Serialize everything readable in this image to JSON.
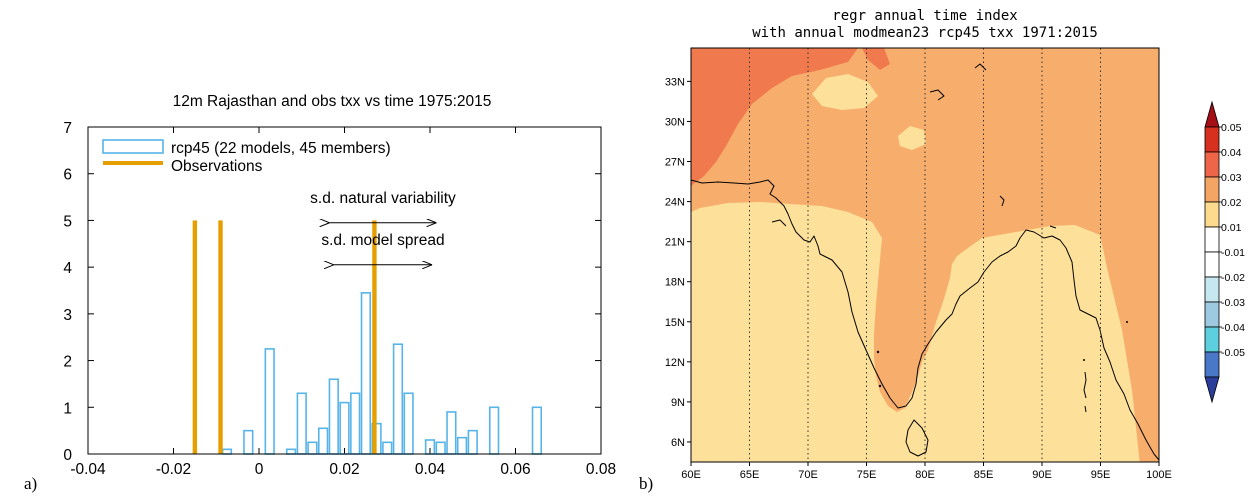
{
  "panel_a": {
    "label": "a)",
    "chart_data": {
      "type": "bar",
      "title": "12m Rajasthan  and obs txx vs time 1975:2015",
      "xlabel": "",
      "ylabel": "",
      "xlim": [
        -0.04,
        0.08
      ],
      "ylim": [
        0,
        7
      ],
      "xticks": [
        "-0.04",
        "-0.02",
        "0",
        "0.02",
        "0.04",
        "0.06",
        "0.08"
      ],
      "yticks": [
        "0",
        "1",
        "2",
        "3",
        "4",
        "5",
        "6",
        "7"
      ],
      "bin_width": 0.0025,
      "legend_position": "top-left",
      "series": [
        {
          "name": "rcp45 (22 models, 45 members)",
          "color": "#56b4e9",
          "style": "outlined-bars",
          "x": [
            -0.0075,
            -0.0025,
            0.0025,
            0.0075,
            0.01,
            0.0125,
            0.015,
            0.0175,
            0.02,
            0.0225,
            0.025,
            0.0275,
            0.03,
            0.0325,
            0.035,
            0.04,
            0.0425,
            0.045,
            0.0475,
            0.05,
            0.055,
            0.065
          ],
          "values": [
            0.1,
            0.5,
            2.25,
            0.1,
            1.3,
            0.25,
            0.55,
            1.6,
            1.1,
            1.3,
            3.45,
            0.65,
            0.25,
            2.35,
            1.3,
            0.3,
            0.25,
            0.9,
            0.35,
            0.5,
            1.0,
            1.0
          ]
        },
        {
          "name": "Observations",
          "color": "#e69f00",
          "style": "solid-bars",
          "x": [
            -0.015,
            -0.009,
            0.027
          ],
          "values": [
            5,
            5,
            5
          ]
        }
      ],
      "annotations": [
        {
          "text": "s.d. natural variability",
          "range": [
            0.0165,
            0.0415
          ],
          "y": 4.95,
          "text_y": 5.5
        },
        {
          "text": "s.d. model spread",
          "range": [
            0.0175,
            0.0405
          ],
          "y": 4.05,
          "text_y": 4.6
        }
      ]
    }
  },
  "panel_b": {
    "label": "b)",
    "chart_data": {
      "type": "heatmap",
      "title_line1": "regr annual time index",
      "title_line2": "with annual modmean23 rcp45 txx 1971:2015",
      "x_ticks": [
        "60E",
        "65E",
        "70E",
        "75E",
        "80E",
        "85E",
        "90E",
        "95E",
        "100E"
      ],
      "y_ticks": [
        "6N",
        "9N",
        "12N",
        "15N",
        "18N",
        "21N",
        "24N",
        "27N",
        "30N",
        "33N"
      ],
      "lon_range": [
        60,
        100
      ],
      "lat_range": [
        4.5,
        35.5
      ],
      "grid": true,
      "colorbar": {
        "labels": [
          "0.05",
          "0.04",
          "0.03",
          "0.02",
          "0.01",
          "-0.01",
          "-0.02",
          "-0.03",
          "-0.04",
          "-0.05"
        ],
        "colors_top_to_bottom": [
          "#a50f15",
          "#d7301f",
          "#ef6548",
          "#f4a563",
          "#fcdc8c",
          "#ffffff",
          "#ffffff",
          "#c6e6f0",
          "#9ecae1",
          "#5dd0e0",
          "#4a78c8",
          "#2b3d9b"
        ]
      },
      "field_colors": {
        "strong": "#f07a4e",
        "moderate": "#f7ae6c",
        "weak": "#fde19b"
      }
    }
  }
}
